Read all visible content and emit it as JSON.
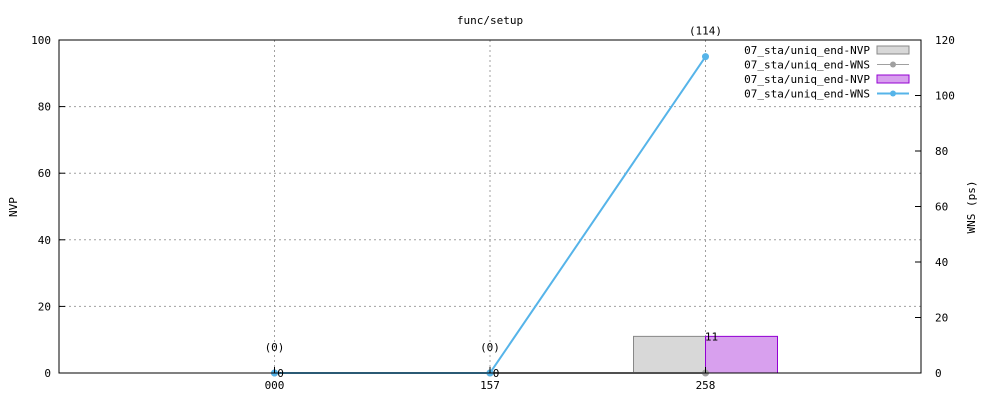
{
  "chart_data": {
    "type": "bar+line",
    "title": "func/setup",
    "categories": [
      "000",
      "157",
      "258"
    ],
    "ylabel_left": "NVP",
    "ylabel_right": "WNS (ps)",
    "ylim_left": [
      0,
      100
    ],
    "ylim_right": [
      0,
      120
    ],
    "yticks_left": [
      "0",
      "20",
      "40",
      "60",
      "80",
      "100"
    ],
    "yticks_right": [
      "0",
      "20",
      "40",
      "60",
      "80",
      "100",
      "120"
    ],
    "grid": true,
    "legend_position": "top-right",
    "series": [
      {
        "name": "07_sta/uniq_end-NVP",
        "kind": "bar",
        "color": "#d8d8d8",
        "edge": "#888888",
        "values": [
          0,
          0,
          11
        ]
      },
      {
        "name": "07_sta/uniq_end-WNS",
        "kind": "line",
        "color": "#a0a0a0",
        "values": [
          0,
          0,
          0
        ]
      },
      {
        "name": "07_sta/uniq_end-NVP",
        "kind": "bar",
        "color": "#d8a0ee",
        "edge": "#9400d3",
        "values": [
          0,
          0,
          11
        ]
      },
      {
        "name": "07_sta/uniq_end-WNS",
        "kind": "line",
        "color": "#56b4e9",
        "values": [
          0,
          0,
          114
        ]
      }
    ],
    "bar_labels": [
      {
        "category": "000",
        "text": "0"
      },
      {
        "category": "157",
        "text": "0"
      },
      {
        "category": "258",
        "text": "11"
      }
    ],
    "line_labels": [
      {
        "category": "000",
        "text": "(0)"
      },
      {
        "category": "157",
        "text": "(0)"
      },
      {
        "category": "258",
        "text": "(114)"
      }
    ]
  }
}
